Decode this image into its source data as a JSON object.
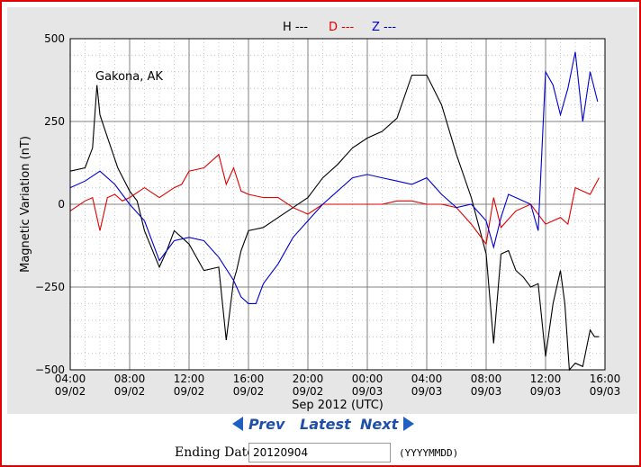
{
  "navigation": {
    "prev_label": "Prev",
    "latest_label": "Latest",
    "next_label": "Next"
  },
  "date_form": {
    "label": "Ending Date:",
    "value": "20120904",
    "format_hint": "(YYYYMMDD)"
  },
  "colors": {
    "frame": "#e00000",
    "H": "#000000",
    "D": "#e00000",
    "Z": "#0000d0",
    "nav_text": "#1f4fa8"
  },
  "chart_data": {
    "type": "line",
    "station": "Gakona, AK",
    "ylabel": "Magnetic Variation (nT)",
    "xlabel": "Sep 2012 (UTC)",
    "ylim": [
      -500,
      500
    ],
    "xlim_hours": [
      0,
      36
    ],
    "y_ticks": [
      "500",
      "250",
      "0",
      "−250",
      "−500"
    ],
    "y_tick_values": [
      500,
      250,
      0,
      -250,
      -500
    ],
    "x_ticks": [
      {
        "time": "04:00",
        "date": "09/02"
      },
      {
        "time": "08:00",
        "date": "09/02"
      },
      {
        "time": "12:00",
        "date": "09/02"
      },
      {
        "time": "16:00",
        "date": "09/02"
      },
      {
        "time": "20:00",
        "date": "09/02"
      },
      {
        "time": "00:00",
        "date": "09/03"
      },
      {
        "time": "04:00",
        "date": "09/03"
      },
      {
        "time": "08:00",
        "date": "09/03"
      },
      {
        "time": "12:00",
        "date": "09/03"
      },
      {
        "time": "16:00",
        "date": "09/03"
      }
    ],
    "grid": true,
    "legend_position": "top-center",
    "series": [
      {
        "name": "H ---",
        "color": "#000000",
        "x": [
          0,
          1,
          1.5,
          1.8,
          2,
          2.3,
          3.2,
          4,
          4.5,
          5,
          6,
          6.5,
          7,
          7.5,
          8,
          9,
          10,
          10.5,
          11,
          11.2,
          11.5,
          12,
          13,
          14,
          15,
          16,
          17,
          18,
          19,
          20,
          21,
          22,
          23,
          24,
          25,
          26,
          27,
          28,
          28.5,
          29,
          29.5,
          30,
          30.5,
          31,
          31.5,
          32,
          32.5,
          33,
          33.3,
          33.6,
          34,
          34.5,
          35,
          35.3,
          35.6
        ],
        "y": [
          100,
          110,
          170,
          360,
          270,
          230,
          110,
          40,
          10,
          -80,
          -190,
          -140,
          -80,
          -100,
          -120,
          -200,
          -190,
          -410,
          -230,
          -200,
          -140,
          -80,
          -70,
          -40,
          -10,
          20,
          80,
          120,
          170,
          200,
          220,
          260,
          390,
          390,
          300,
          150,
          20,
          -150,
          -420,
          -150,
          -140,
          -200,
          -220,
          -250,
          -240,
          -460,
          -300,
          -200,
          -300,
          -510,
          -480,
          -490,
          -380,
          -400,
          -400
        ]
      },
      {
        "name": "D ---",
        "color": "#e00000",
        "x": [
          0,
          1,
          1.5,
          2,
          2.5,
          3,
          3.5,
          4,
          5,
          6,
          7,
          7.5,
          8,
          9,
          10,
          10.5,
          11,
          11.5,
          12,
          13,
          14,
          15,
          16,
          17,
          18,
          19,
          20,
          21,
          22,
          23,
          24,
          25,
          26,
          27,
          28,
          28.5,
          29,
          30,
          31,
          32,
          33,
          33.5,
          34,
          35,
          35.6
        ],
        "y": [
          -20,
          10,
          20,
          -80,
          20,
          30,
          10,
          20,
          50,
          20,
          50,
          60,
          100,
          110,
          150,
          60,
          110,
          40,
          30,
          20,
          20,
          -10,
          -30,
          0,
          0,
          0,
          0,
          0,
          10,
          10,
          0,
          0,
          -10,
          -60,
          -120,
          20,
          -70,
          -20,
          0,
          -60,
          -40,
          -60,
          50,
          30,
          80
        ]
      },
      {
        "name": "Z ---",
        "color": "#0000d0",
        "x": [
          0,
          1,
          2,
          3,
          4,
          5,
          6,
          7,
          8,
          9,
          10,
          11,
          11.5,
          12,
          12.5,
          13,
          14,
          15,
          16,
          17,
          18,
          19,
          20,
          21,
          22,
          23,
          24,
          25,
          26,
          27,
          28,
          28.5,
          29,
          29.5,
          30,
          31,
          31.5,
          32,
          32.5,
          33,
          33.5,
          34,
          34.5,
          35,
          35.5
        ],
        "y": [
          50,
          70,
          100,
          60,
          0,
          -50,
          -170,
          -110,
          -100,
          -110,
          -160,
          -230,
          -280,
          -300,
          -300,
          -240,
          -180,
          -100,
          -50,
          0,
          40,
          80,
          90,
          80,
          70,
          60,
          80,
          30,
          -10,
          0,
          -50,
          -130,
          -40,
          30,
          20,
          0,
          -80,
          400,
          360,
          270,
          350,
          460,
          250,
          400,
          310
        ]
      }
    ]
  }
}
